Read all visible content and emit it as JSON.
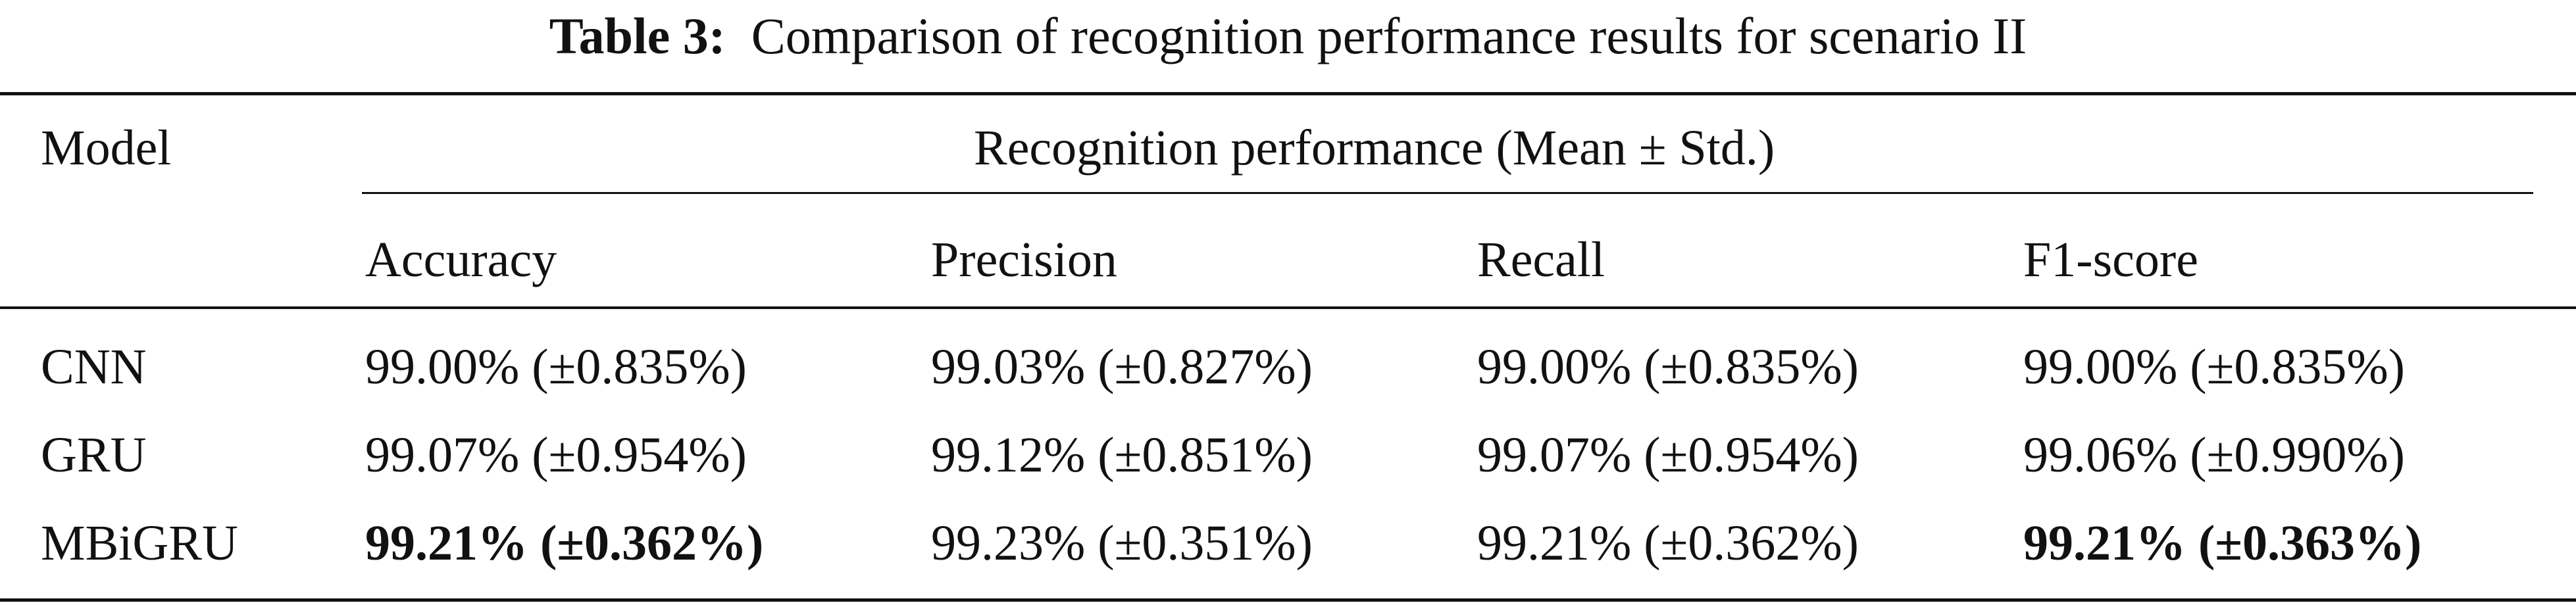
{
  "caption": {
    "label": "Table 3:",
    "text": "Comparison of recognition performance results for scenario II"
  },
  "table": {
    "model_header": "Model",
    "group_header": "Recognition performance (Mean ± Std.)",
    "columns": [
      "Accuracy",
      "Precision",
      "Recall",
      "F1-score"
    ],
    "rows": [
      {
        "model": "CNN",
        "cells": [
          {
            "value": "99.00% (±0.835%)",
            "bold": false
          },
          {
            "value": "99.03% (±0.827%)",
            "bold": false
          },
          {
            "value": "99.00% (±0.835%)",
            "bold": false
          },
          {
            "value": "99.00% (±0.835%)",
            "bold": false
          }
        ]
      },
      {
        "model": "GRU",
        "cells": [
          {
            "value": "99.07% (±0.954%)",
            "bold": false
          },
          {
            "value": "99.12% (±0.851%)",
            "bold": false
          },
          {
            "value": "99.07% (±0.954%)",
            "bold": false
          },
          {
            "value": "99.06% (±0.990%)",
            "bold": false
          }
        ]
      },
      {
        "model": "MBiGRU",
        "cells": [
          {
            "value": "99.21% (±0.362%)",
            "bold": true
          },
          {
            "value": "99.23% (±0.351%)",
            "bold": false
          },
          {
            "value": "99.21% (±0.362%)",
            "bold": false
          },
          {
            "value": "99.21% (±0.363%)",
            "bold": true
          }
        ]
      }
    ]
  }
}
